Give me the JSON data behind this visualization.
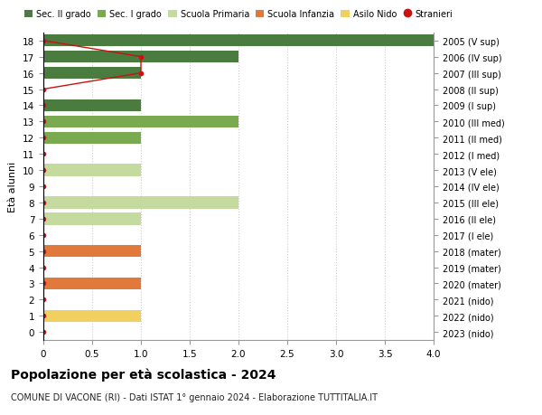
{
  "ages": [
    18,
    17,
    16,
    15,
    14,
    13,
    12,
    11,
    10,
    9,
    8,
    7,
    6,
    5,
    4,
    3,
    2,
    1,
    0
  ],
  "years": [
    "2005 (V sup)",
    "2006 (IV sup)",
    "2007 (III sup)",
    "2008 (II sup)",
    "2009 (I sup)",
    "2010 (III med)",
    "2011 (II med)",
    "2012 (I med)",
    "2013 (V ele)",
    "2014 (IV ele)",
    "2015 (III ele)",
    "2016 (II ele)",
    "2017 (I ele)",
    "2018 (mater)",
    "2019 (mater)",
    "2020 (mater)",
    "2021 (nido)",
    "2022 (nido)",
    "2023 (nido)"
  ],
  "bar_values": [
    4,
    2,
    1,
    0,
    1,
    2,
    1,
    0,
    1,
    0,
    2,
    1,
    0,
    1,
    0,
    1,
    0,
    1,
    0
  ],
  "bar_colors": [
    "#4a7c3f",
    "#4a7c3f",
    "#4a7c3f",
    "#4a7c3f",
    "#4a7c3f",
    "#7aaa50",
    "#7aaa50",
    "#7aaa50",
    "#c5da9f",
    "#c5da9f",
    "#c5da9f",
    "#c5da9f",
    "#c5da9f",
    "#e0793a",
    "#e0793a",
    "#e0793a",
    "#f2d060",
    "#f2d060",
    "#f2d060"
  ],
  "stranieri_x": [
    0,
    1,
    1,
    0,
    0,
    0,
    0,
    0,
    0,
    0,
    0,
    0,
    0,
    0,
    0,
    0,
    0,
    0,
    0
  ],
  "stranieri_ages": [
    18,
    17,
    16,
    15,
    14,
    13,
    12,
    11,
    10,
    9,
    8,
    7,
    6,
    5,
    4,
    3,
    2,
    1,
    0
  ],
  "colors": {
    "sec2": "#4a7c3f",
    "sec1": "#7aaa50",
    "primaria": "#c5da9f",
    "infanzia": "#e0793a",
    "nido": "#f2d060",
    "stranieri": "#cc1111"
  },
  "title": "Popolazione per età scolastica - 2024",
  "subtitle": "COMUNE DI VACONE (RI) - Dati ISTAT 1° gennaio 2024 - Elaborazione TUTTITALIA.IT",
  "ylabel_left": "Età alunni",
  "xlim": [
    0,
    4
  ],
  "ylim": [
    -0.5,
    18.5
  ],
  "xticks": [
    0,
    0.5,
    1.0,
    1.5,
    2.0,
    2.5,
    3.0,
    3.5,
    4.0
  ],
  "xtick_labels": [
    "0",
    "0.5",
    "1.0",
    "1.5",
    "2.0",
    "2.5",
    "3.0",
    "3.5",
    "4.0"
  ],
  "legend_labels": [
    "Sec. II grado",
    "Sec. I grado",
    "Scuola Primaria",
    "Scuola Infanzia",
    "Asilo Nido",
    "Stranieri"
  ],
  "bar_height": 0.75
}
